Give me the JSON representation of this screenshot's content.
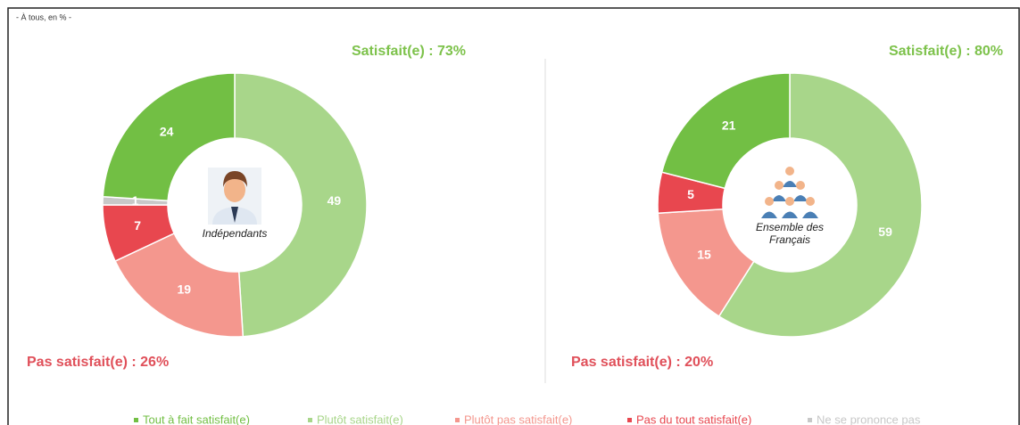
{
  "subtitle": "- À tous, en % -",
  "legend": {
    "categories": [
      "Tout à fait satisfait(e)",
      "Plutôt satisfait(e)",
      "Plutôt pas satisfait(e)",
      "Pas du tout satisfait(e)",
      "Ne se prononce pas"
    ],
    "colors": [
      "#72bf44",
      "#a8d68a",
      "#f4978e",
      "#e8474f",
      "#c8c8c8"
    ]
  },
  "chart_data": [
    {
      "type": "pie",
      "title": "Satisfait(e) : 73%",
      "annotation": "Pas satisfait(e) : 26%",
      "center_label": [
        "Indépendants"
      ],
      "values": [
        24,
        49,
        19,
        7,
        1
      ]
    },
    {
      "type": "pie",
      "title": "Satisfait(e) : 80%",
      "annotation": "Pas satisfait(e) : 20%",
      "center_label": [
        "Ensemble des",
        "Français"
      ],
      "values": [
        21,
        59,
        15,
        5,
        null
      ]
    }
  ]
}
